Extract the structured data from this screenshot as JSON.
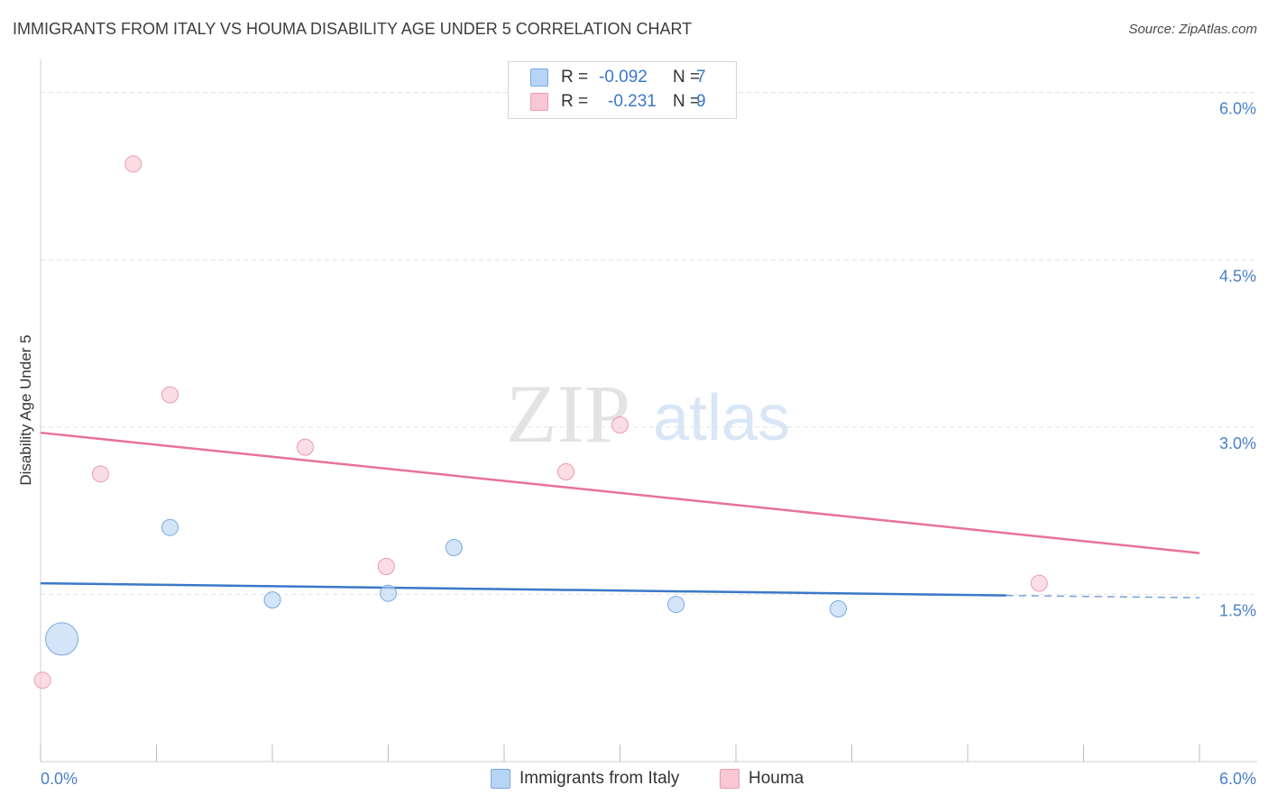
{
  "title": "IMMIGRANTS FROM ITALY VS HOUMA DISABILITY AGE UNDER 5 CORRELATION CHART",
  "source": "Source: ZipAtlas.com",
  "watermark": {
    "zip": "ZIP",
    "atlas": "atlas"
  },
  "legend": {
    "series1": {
      "r_label": "R =",
      "r_value": "-0.092",
      "n_label": "N =",
      "n_value": "7"
    },
    "series2": {
      "r_label": "R =",
      "r_value": "-0.231",
      "n_label": "N =",
      "n_value": "9"
    }
  },
  "colors": {
    "italy_fill": "#b8d4f5",
    "italy_stroke": "#7aa8e0",
    "italy_line": "#3a78c9",
    "houma_fill": "#f9c6d4",
    "houma_stroke": "#eb9bb1",
    "houma_line": "#e8729a",
    "grid": "#e2e2e2",
    "tick_text": "#4a7fc9"
  },
  "chart_data": {
    "type": "scatter",
    "title": "IMMIGRANTS FROM ITALY VS HOUMA DISABILITY AGE UNDER 5 CORRELATION CHART",
    "xlabel": "",
    "ylabel": "Disability Age Under 5",
    "xlim": [
      0,
      6.0
    ],
    "ylim": [
      0,
      6.2
    ],
    "x_tick_labels": [
      "0.0%",
      "6.0%"
    ],
    "y_ticks": [
      1.5,
      3.0,
      4.5,
      6.0
    ],
    "y_tick_labels": [
      "1.5%",
      "3.0%",
      "4.5%",
      "6.0%"
    ],
    "series": [
      {
        "name": "Immigrants from Italy",
        "points": [
          {
            "x": 0.11,
            "y": 1.1,
            "size": "large"
          },
          {
            "x": 0.67,
            "y": 2.1
          },
          {
            "x": 1.2,
            "y": 1.45
          },
          {
            "x": 1.8,
            "y": 1.51
          },
          {
            "x": 2.14,
            "y": 1.92
          },
          {
            "x": 3.29,
            "y": 1.41
          },
          {
            "x": 4.13,
            "y": 1.37
          }
        ],
        "trend": {
          "x_start": 0.0,
          "y_start": 1.6,
          "x_solid_end": 5.0,
          "y_solid_end": 1.49,
          "x_end": 6.0,
          "y_end": 1.47
        }
      },
      {
        "name": "Houma",
        "points": [
          {
            "x": 0.01,
            "y": 0.73
          },
          {
            "x": 0.31,
            "y": 2.58
          },
          {
            "x": 0.48,
            "y": 5.36
          },
          {
            "x": 0.67,
            "y": 3.29
          },
          {
            "x": 1.37,
            "y": 2.82
          },
          {
            "x": 1.79,
            "y": 1.75
          },
          {
            "x": 2.72,
            "y": 2.6
          },
          {
            "x": 3.0,
            "y": 3.02
          },
          {
            "x": 5.17,
            "y": 1.6
          }
        ],
        "trend": {
          "x_start": 0.0,
          "y_start": 2.95,
          "x_end": 6.0,
          "y_end": 1.87
        }
      }
    ]
  }
}
